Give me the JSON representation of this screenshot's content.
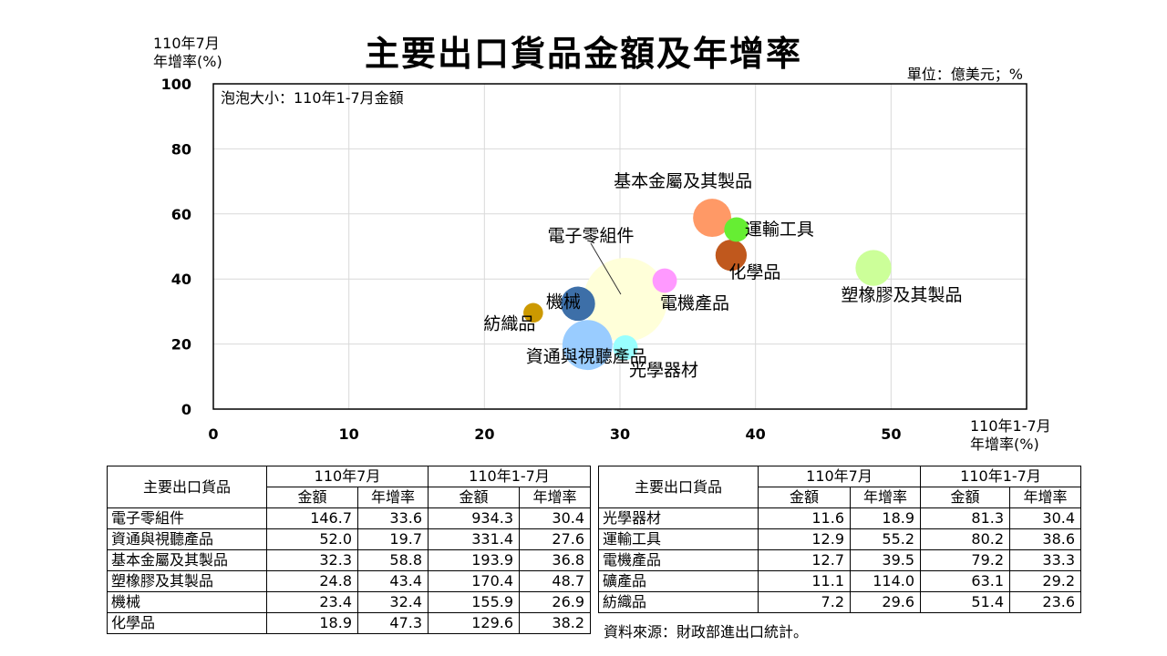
{
  "title": "主要出口貨品金額及年增率",
  "unit_note": "單位：億美元；%",
  "chart_data": {
    "type": "bubble",
    "ylabel_line1": "110年7月",
    "ylabel_line2": "年增率(%)",
    "xlabel_line1": "110年1-7月",
    "xlabel_line2": "年增率(%)",
    "bubble_note": "泡泡大小：110年1-7月金額",
    "xlim": [
      0,
      60
    ],
    "ylim": [
      0,
      100
    ],
    "x_ticks": [
      "0",
      "10",
      "20",
      "30",
      "40",
      "50"
    ],
    "y_ticks": [
      "0",
      "20",
      "40",
      "60",
      "80",
      "100"
    ],
    "grid": true,
    "points": [
      {
        "name": "電子零組件",
        "x": 30.4,
        "y": 33.6,
        "size": 934.3,
        "color": "#ffffd9"
      },
      {
        "name": "資通與視聽產品",
        "x": 27.6,
        "y": 19.7,
        "size": 331.4,
        "color": "#99ccff"
      },
      {
        "name": "基本金屬及其製品",
        "x": 36.8,
        "y": 58.8,
        "size": 193.9,
        "color": "#ff9966"
      },
      {
        "name": "塑橡膠及其製品",
        "x": 48.7,
        "y": 43.4,
        "size": 170.4,
        "color": "#ccff99"
      },
      {
        "name": "機械",
        "x": 26.9,
        "y": 32.4,
        "size": 155.9,
        "color": "#3d6fa8"
      },
      {
        "name": "化學品",
        "x": 38.2,
        "y": 47.3,
        "size": 129.6,
        "color": "#c0581d"
      },
      {
        "name": "光學器材",
        "x": 30.4,
        "y": 18.9,
        "size": 81.3,
        "color": "#99ffff"
      },
      {
        "name": "運輸工具",
        "x": 38.6,
        "y": 55.2,
        "size": 80.2,
        "color": "#66ee33"
      },
      {
        "name": "電機產品",
        "x": 33.3,
        "y": 39.5,
        "size": 79.2,
        "color": "#ff99ff"
      },
      {
        "name": "紡織品",
        "x": 23.6,
        "y": 29.6,
        "size": 51.4,
        "color": "#cc9900"
      }
    ]
  },
  "table": {
    "header_item": "主要出口貨品",
    "header_period1": "110年7月",
    "header_period2": "110年1-7月",
    "header_amount": "金額",
    "header_growth": "年增率",
    "left_rows": [
      [
        "電子零組件",
        "146.7",
        "33.6",
        "934.3",
        "30.4"
      ],
      [
        "資通與視聽產品",
        "52.0",
        "19.7",
        "331.4",
        "27.6"
      ],
      [
        "基本金屬及其製品",
        "32.3",
        "58.8",
        "193.9",
        "36.8"
      ],
      [
        "塑橡膠及其製品",
        "24.8",
        "43.4",
        "170.4",
        "48.7"
      ],
      [
        "機械",
        "23.4",
        "32.4",
        "155.9",
        "26.9"
      ],
      [
        "化學品",
        "18.9",
        "47.3",
        "129.6",
        "38.2"
      ]
    ],
    "right_rows": [
      [
        "光學器材",
        "11.6",
        "18.9",
        "81.3",
        "30.4"
      ],
      [
        "運輸工具",
        "12.9",
        "55.2",
        "80.2",
        "38.6"
      ],
      [
        "電機產品",
        "12.7",
        "39.5",
        "79.2",
        "33.3"
      ],
      [
        "礦產品",
        "11.1",
        "114.0",
        "63.1",
        "29.2"
      ],
      [
        "紡織品",
        "7.2",
        "29.6",
        "51.4",
        "23.6"
      ]
    ]
  },
  "source": "資料來源：財政部進出口統計。"
}
